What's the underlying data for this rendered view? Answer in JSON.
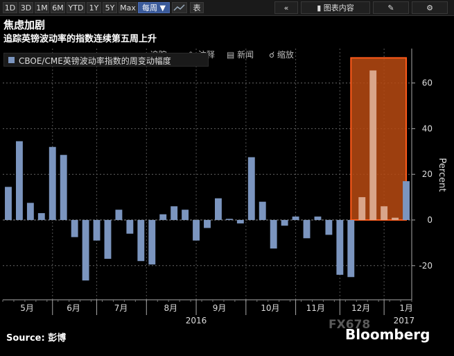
{
  "toolbar": {
    "ranges": [
      "1D",
      "3D",
      "1M",
      "6M",
      "YTD",
      "1Y",
      "5Y",
      "Max"
    ],
    "period": "每周 ▼",
    "chart_icon": "line-chart-icon",
    "table_label": "表",
    "collapse_icon": "double-chevron-left-icon",
    "content_label": "图表内容",
    "edit_icon": "pencil-icon",
    "settings_icon": "gear-icon"
  },
  "menu": {
    "items": [
      {
        "icon": "chevron-left-icon",
        "label": "追踪"
      },
      {
        "icon": "pencil-icon",
        "label": "注释"
      },
      {
        "icon": "news-icon",
        "label": "新闻"
      },
      {
        "icon": "zoom-icon",
        "label": "缩放"
      }
    ]
  },
  "chart_data": {
    "type": "bar",
    "title": "焦虑加剧",
    "subtitle": "追踪英镑波动率的指数连续第五周上升",
    "ylabel": "Percent",
    "ylim": [
      -35,
      72
    ],
    "yticks": [
      -20,
      0,
      20,
      40,
      60
    ],
    "grid": true,
    "y_axis_side": "right",
    "series": [
      {
        "name": "CBOE/CME英镑波动率指数的周变动幅度",
        "color": "#7b95bf",
        "values": [
          14.5,
          34.5,
          7.5,
          3,
          32,
          28.5,
          -7.5,
          -26.5,
          -9,
          -17,
          4.5,
          -6,
          -18,
          -19.5,
          2.5,
          6,
          4.5,
          -9,
          -3.5,
          9.5,
          0.5,
          -1.5,
          27.5,
          8,
          -12.5,
          -2.5,
          1.5,
          -8,
          1.5,
          -6.5,
          -24,
          -25,
          10,
          65.5,
          6,
          1,
          17
        ]
      }
    ],
    "x_month_labels": [
      {
        "label": "5月",
        "index": 2.2
      },
      {
        "label": "6月",
        "index": 6.4
      },
      {
        "label": "7月",
        "index": 10.7
      },
      {
        "label": "8月",
        "index": 15.2
      },
      {
        "label": "9月",
        "index": 19.6
      },
      {
        "label": "10月",
        "index": 24.2
      },
      {
        "label": "11月",
        "index": 28.3
      },
      {
        "label": "12月",
        "index": 32.4
      },
      {
        "label": "1月",
        "index": 36.5
      }
    ],
    "x_month_separators": [
      4.5,
      8.5,
      13,
      17.5,
      22,
      26.5,
      30.5,
      34.5
    ],
    "x_year_labels": [
      {
        "label": "2016",
        "index": 17.5
      },
      {
        "label": "2017",
        "index": 36.3
      }
    ],
    "highlight": {
      "from_index": 31.5,
      "to_index": 36.5,
      "ymin": 0,
      "ymax": 71,
      "fill": "#b84a12",
      "stroke": "#ff5a1a"
    }
  },
  "footer": {
    "source": "Source: 彭博",
    "watermark": "FX678",
    "brand": "Bloomberg"
  }
}
